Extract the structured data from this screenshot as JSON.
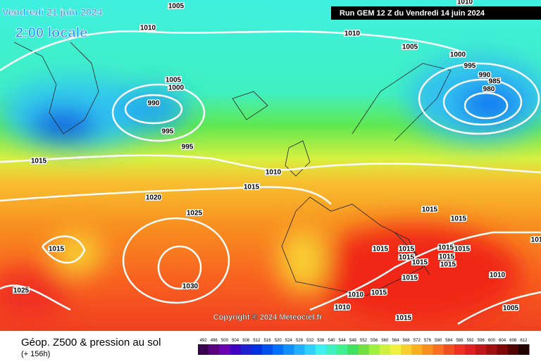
{
  "header": {
    "date": "Vendredi 21 juin 2024",
    "time": "2:00 locale",
    "run": "Run GEM 12 Z du Vendredi 14 juin 2024"
  },
  "copyright": "Copyright © 2024 Meteociel.fr",
  "footer": {
    "title": "Géop. Z500 & pression au sol",
    "lead": "(+ 156h)"
  },
  "isobar_labels": [
    "1010",
    "1005",
    "1010",
    "1010",
    "1005",
    "1000",
    "995",
    "990",
    "985",
    "980",
    "1005",
    "1000",
    "990",
    "995",
    "995",
    "1015",
    "1010",
    "1015",
    "1020",
    "1025",
    "1015",
    "1015",
    "1015",
    "1015",
    "1015",
    "1015",
    "1015",
    "1015",
    "1015",
    "1015",
    "1015",
    "1010",
    "1015",
    "1030",
    "1025",
    "1010",
    "1015",
    "1010",
    "1005",
    "1015",
    "101"
  ],
  "colorbar": {
    "labels": [
      "492",
      "496",
      "500",
      "504",
      "508",
      "512",
      "516",
      "520",
      "524",
      "528",
      "532",
      "536",
      "540",
      "544",
      "548",
      "552",
      "556",
      "560",
      "564",
      "568",
      "572",
      "576",
      "580",
      "584",
      "588",
      "592",
      "596",
      "600",
      "604",
      "608",
      "612"
    ],
    "colors": [
      "#3a0050",
      "#5a0080",
      "#6a00b0",
      "#4000c0",
      "#2020d0",
      "#0030e0",
      "#0050f0",
      "#0070ff",
      "#1090ff",
      "#20b0ff",
      "#30d0ff",
      "#40f0f0",
      "#40f0c0",
      "#40f090",
      "#40e060",
      "#70e040",
      "#a0f040",
      "#d0f040",
      "#f0f040",
      "#f8d030",
      "#f8b020",
      "#f89020",
      "#f87020",
      "#f05020",
      "#f03020",
      "#e02020",
      "#c01818",
      "#a01010",
      "#800808",
      "#500404",
      "#200000"
    ]
  }
}
